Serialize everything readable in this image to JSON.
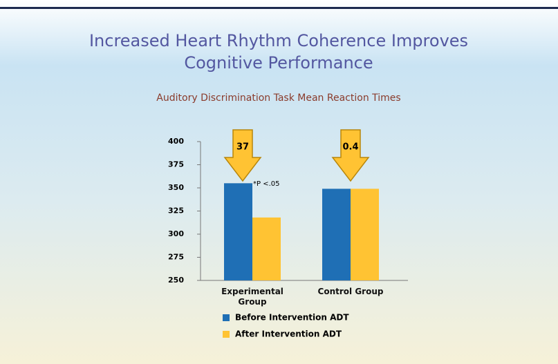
{
  "chart_data": {
    "type": "bar",
    "title": "Increased Heart Rhythm Coherence Improves Cognitive Performance",
    "subtitle": "Auditory Discrimination Task Mean Reaction Times",
    "categories": [
      "Experimental Group",
      "Control Group"
    ],
    "series": [
      {
        "name": "Before Intervention ADT",
        "color": "#1f6fb5",
        "values": [
          355,
          349
        ]
      },
      {
        "name": "After Intervention ADT",
        "color": "#ffc333",
        "values": [
          318,
          349
        ]
      }
    ],
    "ylim": [
      250,
      400
    ],
    "yticks": [
      250,
      275,
      300,
      325,
      350,
      375,
      400
    ],
    "arrows": [
      "37",
      "0.4"
    ],
    "note": "*P <.05",
    "legend": "bottom"
  }
}
